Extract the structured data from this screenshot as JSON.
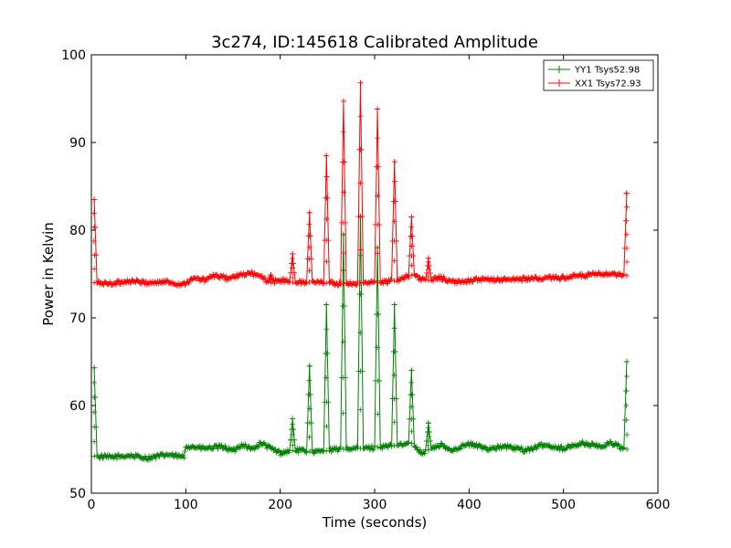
{
  "chart_data": {
    "type": "line",
    "title": "3c274, ID:145618 Calibrated Amplitude",
    "xlabel": "Time (seconds)",
    "ylabel": "Power in Kelvin",
    "xlim": [
      0,
      600
    ],
    "ylim": [
      50,
      100
    ],
    "xticks": [
      "0",
      "100",
      "200",
      "300",
      "400",
      "500",
      "600"
    ],
    "yticks": [
      "50",
      "60",
      "70",
      "80",
      "90",
      "100"
    ],
    "grid": false,
    "legend_position": "top-right",
    "series": [
      {
        "name": "YY1 Tsys52.98",
        "color": "#008000",
        "marker": "+",
        "baseline_knots": [
          [
            3,
            54.2
          ],
          [
            20,
            54.1
          ],
          [
            40,
            54.3
          ],
          [
            60,
            54.0
          ],
          [
            80,
            54.4
          ],
          [
            98,
            54.1
          ],
          [
            100,
            55.4
          ],
          [
            120,
            55.1
          ],
          [
            140,
            55.3
          ],
          [
            150,
            54.8
          ],
          [
            160,
            55.6
          ],
          [
            170,
            55.0
          ],
          [
            180,
            55.7
          ],
          [
            190,
            55.1
          ],
          [
            200,
            54.6
          ],
          [
            215,
            54.9
          ],
          [
            240,
            54.7
          ],
          [
            260,
            55.0
          ],
          [
            300,
            55.2
          ],
          [
            320,
            55.4
          ],
          [
            340,
            55.7
          ],
          [
            350,
            54.6
          ],
          [
            370,
            55.5
          ],
          [
            380,
            54.9
          ],
          [
            400,
            55.6
          ],
          [
            420,
            55.1
          ],
          [
            440,
            55.3
          ],
          [
            460,
            54.9
          ],
          [
            480,
            55.5
          ],
          [
            500,
            55.1
          ],
          [
            520,
            55.7
          ],
          [
            540,
            55.3
          ],
          [
            550,
            55.8
          ],
          [
            565,
            55.0
          ]
        ],
        "peaks": [
          [
            3,
            64.3
          ],
          [
            213,
            58.5
          ],
          [
            231,
            64.5
          ],
          [
            249,
            71.5
          ],
          [
            267,
            79.5
          ],
          [
            285,
            81.5
          ],
          [
            303,
            78.0
          ],
          [
            321,
            71.5
          ],
          [
            339,
            64.0
          ],
          [
            357,
            58.0
          ],
          [
            567,
            65.0
          ]
        ]
      },
      {
        "name": "XX1 Tsys72.93",
        "color": "#ff0000",
        "marker": "+",
        "baseline_knots": [
          [
            3,
            74.0
          ],
          [
            20,
            73.9
          ],
          [
            40,
            74.2
          ],
          [
            60,
            74.0
          ],
          [
            80,
            74.1
          ],
          [
            95,
            73.8
          ],
          [
            110,
            74.5
          ],
          [
            120,
            74.3
          ],
          [
            130,
            74.8
          ],
          [
            145,
            74.5
          ],
          [
            160,
            74.9
          ],
          [
            170,
            75.1
          ],
          [
            180,
            74.6
          ],
          [
            190,
            74.0
          ],
          [
            200,
            74.3
          ],
          [
            215,
            74.0
          ],
          [
            240,
            74.1
          ],
          [
            260,
            73.9
          ],
          [
            300,
            74.0
          ],
          [
            320,
            74.2
          ],
          [
            340,
            74.9
          ],
          [
            355,
            74.2
          ],
          [
            370,
            74.6
          ],
          [
            385,
            74.0
          ],
          [
            400,
            74.3
          ],
          [
            450,
            74.4
          ],
          [
            500,
            74.6
          ],
          [
            540,
            75.0
          ],
          [
            565,
            74.8
          ]
        ],
        "peaks": [
          [
            3,
            83.5
          ],
          [
            190,
            74.9
          ],
          [
            213,
            77.3
          ],
          [
            231,
            82.0
          ],
          [
            249,
            88.5
          ],
          [
            267,
            94.7
          ],
          [
            285,
            96.8
          ],
          [
            303,
            93.8
          ],
          [
            321,
            87.8
          ],
          [
            339,
            81.5
          ],
          [
            357,
            76.8
          ],
          [
            567,
            84.2
          ]
        ]
      }
    ]
  }
}
